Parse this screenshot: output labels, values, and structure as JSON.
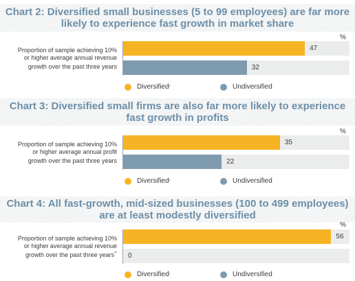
{
  "colors": {
    "diversified": "#f6b425",
    "undiversified": "#7f9bb0",
    "title": "#6d8fa8",
    "track": "#ebecec"
  },
  "chart_data": [
    {
      "type": "bar",
      "title_line1": "Chart 2: Diversified small businesses (5 to 99 employees) are far more",
      "title_line2": "likely to experience fast growth in market share",
      "unit": "%",
      "label_lines": [
        "Proportion of sample achieving 10%",
        "or higher average annual revenue",
        "growth over the past three years"
      ],
      "label_sup": "",
      "series": [
        {
          "name": "Diversified",
          "value": 47
        },
        {
          "name": "Undiversified",
          "value": 32
        }
      ],
      "legend": {
        "diversified": "Diversified",
        "diversified_sup": "*",
        "undiversified": "Undiversified"
      }
    },
    {
      "type": "bar",
      "title_line1": "Chart 3: Diversified small firms are also far more likely to experience",
      "title_line2": "fast growth in profits",
      "unit": "%",
      "label_lines": [
        "Proportion of sample achieving 10%",
        "or higher average annual profit",
        "growth over the past three years"
      ],
      "label_sup": "",
      "series": [
        {
          "name": "Diversified",
          "value": 35
        },
        {
          "name": "Undiversified",
          "value": 22
        }
      ],
      "legend": {
        "diversified": "Diversified",
        "diversified_sup": "*",
        "undiversified": "Undiversified"
      }
    },
    {
      "type": "bar",
      "title_line1": "Chart 4: All fast-growth, mid-sized businesses (100 to 499 employees)",
      "title_line2": "are at least modestly diversified",
      "unit": "%",
      "label_lines": [
        "Proportion of sample achieving 10%",
        "or higher average annual revenue",
        "growth over the past three years"
      ],
      "label_sup": "**",
      "series": [
        {
          "name": "Diversified",
          "value": 56
        },
        {
          "name": "Undiversified",
          "value": 0
        }
      ],
      "legend": {
        "diversified": "Diversified",
        "diversified_sup": "*",
        "undiversified": "Undiversified"
      }
    }
  ]
}
